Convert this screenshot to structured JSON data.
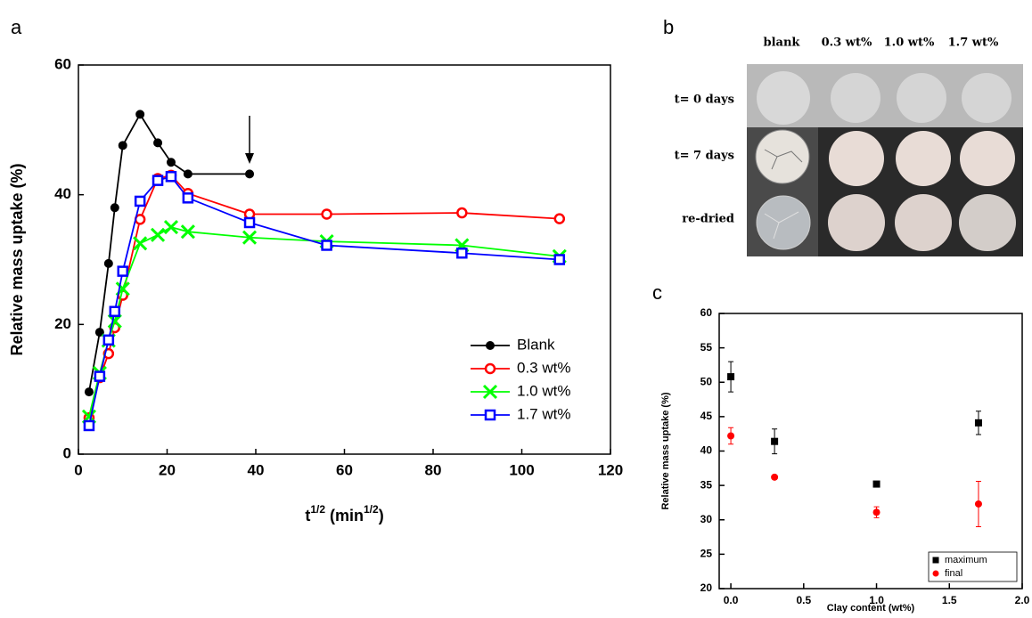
{
  "chart_data": [
    {
      "type": "line",
      "panel_label": "a",
      "y_label": "Relative mass uptake (%)",
      "x_label_parts": [
        "t",
        "1/2",
        " (min",
        "1/2",
        ")"
      ],
      "x": [
        2.4,
        4.8,
        6.8,
        8.2,
        10,
        13.9,
        17.9,
        20.9,
        24.7,
        38.6,
        56,
        86.5,
        108.5
      ],
      "xlim": [
        0,
        120
      ],
      "xticks": [
        0,
        20,
        40,
        60,
        80,
        100,
        120
      ],
      "ylim": [
        0,
        60
      ],
      "yticks": [
        0,
        20,
        40,
        60
      ],
      "legend": "lower right",
      "series": [
        {
          "name": "Blank",
          "color": "#000000",
          "marker": "filled-circle",
          "values": [
            9.6,
            18.8,
            29.4,
            38,
            47.6,
            52.4,
            48,
            45,
            43.2,
            43.2,
            null,
            null,
            null
          ]
        },
        {
          "name": "0.3 wt%",
          "color": "#ff0000",
          "marker": "open-circle",
          "values": [
            5.6,
            11.8,
            15.5,
            19.5,
            24.5,
            36.2,
            42.5,
            43,
            40.2,
            37,
            37,
            37.2,
            36.3
          ]
        },
        {
          "name": "1.0 wt%",
          "color": "#00ff00",
          "marker": "cross",
          "values": [
            5.8,
            12.5,
            17.5,
            20.5,
            25.5,
            32.5,
            33.8,
            35,
            34.3,
            33.4,
            32.8,
            32.2,
            30.5
          ]
        },
        {
          "name": "1.7 wt%",
          "color": "#0000ff",
          "marker": "open-square",
          "values": [
            4.4,
            12,
            17.6,
            22,
            28.2,
            39,
            42.2,
            42.8,
            39.5,
            35.7,
            32.2,
            31,
            30
          ]
        }
      ]
    },
    {
      "type": "scatter",
      "panel_label": "c",
      "y_label": "Relative mass uptake (%)",
      "x_label": "Clay content (wt%)",
      "x": [
        0,
        0.3,
        1,
        1.7
      ],
      "xlim": [
        -0.08,
        2.0
      ],
      "xticks": [
        {
          "value": 0,
          "label": "0.0"
        },
        {
          "value": 0.5,
          "label": "0.5"
        },
        {
          "value": 1,
          "label": "1.0"
        },
        {
          "value": 1.5,
          "label": "1.5"
        },
        {
          "value": 2,
          "label": "2.0"
        }
      ],
      "ylim": [
        20,
        60
      ],
      "yticks": [
        20,
        25,
        30,
        35,
        40,
        45,
        50,
        55,
        60
      ],
      "legend": "lower right",
      "series": [
        {
          "name": "maximum",
          "color": "#000000",
          "marker": "filled-square",
          "values": [
            50.8,
            41.4,
            35.2,
            44.1
          ],
          "errors": [
            2.2,
            1.8,
            0.3,
            1.7
          ]
        },
        {
          "name": "final",
          "color": "#ff0000",
          "marker": "filled-circle",
          "values": [
            42.2,
            36.2,
            31.1,
            32.3
          ],
          "errors": [
            1.2,
            0,
            0.8,
            3.3
          ]
        }
      ]
    }
  ],
  "photo_panel": {
    "panel_label": "b",
    "columns": [
      "blank",
      "0.3 wt%",
      "1.0 wt%",
      "1.7 wt%"
    ],
    "rows": [
      "t= 0 days",
      "t= 7 days",
      "re-dried"
    ]
  }
}
